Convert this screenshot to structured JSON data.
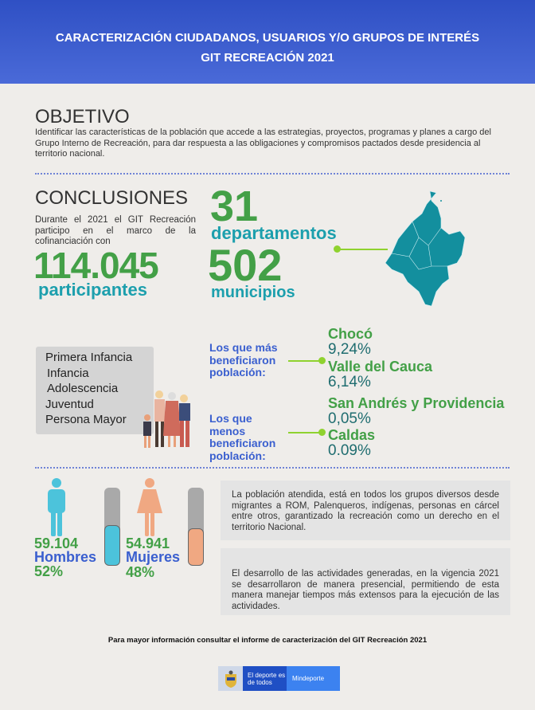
{
  "header": {
    "title_line1": "CARACTERIZACIÓN CIUDADANOS, USUARIOS Y/O GRUPOS DE INTERÉS",
    "title_line2": "GIT RECREACIÓN 2021"
  },
  "objetivo": {
    "heading": "OBJETIVO",
    "text": "Identificar las características de la población que accede a las estrategias, proyectos, programas y planes a cargo del Grupo Interno de Recreación, para dar respuesta a las obligaciones y compromisos pactados desde presidencia al territorio nacional."
  },
  "conclusiones": {
    "heading": "CONCLUSIONES",
    "intro": "Durante el 2021 el GIT Recreación participo en el marco de la cofinanciación con",
    "participants_value": "114.045",
    "participants_label": "participantes",
    "departments_value": "31",
    "departments_label": "departamentos",
    "municipalities_value": "502",
    "municipalities_label": "municipios"
  },
  "groups": [
    "Primera Infancia",
    "Infancia",
    "Adolescencia",
    "Juventud",
    "Persona Mayor"
  ],
  "most": {
    "label": "Los que más beneficiaron población:",
    "items": [
      {
        "name": "Chocó",
        "pct": "9,24%"
      },
      {
        "name": "Valle del Cauca",
        "pct": "6,14%"
      }
    ]
  },
  "least": {
    "label": "Los que menos beneficiaron población:",
    "items": [
      {
        "name": "San Andrés y Providencia",
        "pct": "0,05%"
      },
      {
        "name": "Caldas",
        "pct": "0.09%"
      }
    ]
  },
  "gender": {
    "men": {
      "value": "59.104",
      "label": "Hombres",
      "pct": "52%",
      "fill": 52,
      "color": "#4cc3db"
    },
    "women": {
      "value": "54.941",
      "label": "Mujeres",
      "pct": "48%",
      "fill": 48,
      "color": "#f0a882"
    }
  },
  "notes": [
    "La población atendida, está en todos los grupos diversos desde migrantes a ROM, Palenqueros, indígenas, personas en cárcel entre otros, garantizado la recreación como un derecho en el territorio Nacional.",
    "El desarrollo de las actividades generadas, en la vigencia 2021 se desarrollaron de manera presencial, permitiendo de esta manera manejar tiempos más extensos para la ejecución de las actividades."
  ],
  "footer": {
    "info": "Para mayor información consultar el informe de caracterización del GIT Recreación 2021",
    "logo_slogan": "El deporte es de todos",
    "logo_brand": "Mindeporte"
  },
  "colors": {
    "green": "#43a047",
    "teal": "#1c9fad",
    "blue": "#3a5fcf",
    "map": "#138f9e"
  }
}
